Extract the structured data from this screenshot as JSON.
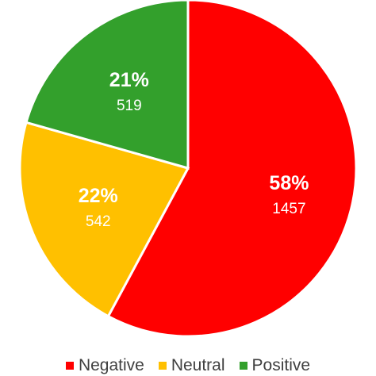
{
  "chart_data": {
    "type": "pie",
    "title": "",
    "start_angle_deg": 0,
    "direction": "clockwise",
    "slices": [
      {
        "name": "Negative",
        "percent_label": "58%",
        "count_label": "1457",
        "value": 1457,
        "color": "#ff0000"
      },
      {
        "name": "Neutral",
        "percent_label": "22%",
        "count_label": "542",
        "value": 542,
        "color": "#ffc000"
      },
      {
        "name": "Positive",
        "percent_label": "21%",
        "count_label": "519",
        "value": 519,
        "color": "#33a02c"
      }
    ],
    "legend": {
      "placement": "bottom"
    }
  }
}
